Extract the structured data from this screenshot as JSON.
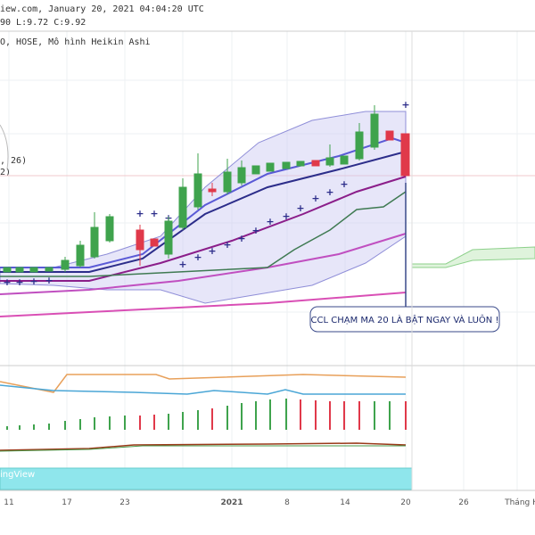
{
  "header": {
    "source": "iew.com, January 20, 2021 04:04:20 UTC",
    "ohlc": "90 L:9.72 C:9.92",
    "symbol": "O, HOSE, Mô hình Heikin Ashi"
  },
  "legend": [
    ", 26)",
    "2)"
  ],
  "annotation": "CCL CHẠM MA 20 LÀ BẬT NGAY VÀ LUÔN !",
  "watermark": "ingView",
  "x_axis": [
    "11",
    "17",
    "23",
    "2021",
    "8",
    "14",
    "20",
    "26",
    "Tháng H"
  ]
}
